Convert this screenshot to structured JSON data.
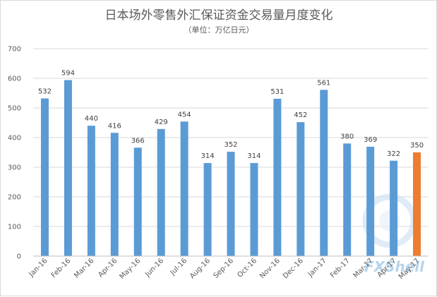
{
  "chart_data": {
    "type": "bar",
    "title": "日本场外零售外汇保证资金交易量月度变化",
    "subtitle": "（单位：万亿日元）",
    "categories": [
      "Jan-16",
      "Feb-16",
      "Mar-16",
      "Apr-16",
      "May-16",
      "Jun-16",
      "Jul-16",
      "Aug-16",
      "Sep-16",
      "Oct-16",
      "Nov-16",
      "Dec-16",
      "Jan-17",
      "Feb-17",
      "Mar-17",
      "Apr-17",
      "May-17"
    ],
    "values": [
      532,
      594,
      440,
      416,
      366,
      429,
      454,
      314,
      352,
      314,
      531,
      452,
      561,
      380,
      369,
      322,
      350
    ],
    "data_labels": [
      "532",
      "594",
      "440",
      "416",
      "366",
      "429",
      "454",
      "314",
      "352",
      "314",
      "531",
      "452",
      "561",
      "380",
      "369",
      "322",
      "350"
    ],
    "yticks": [
      "0",
      "100",
      "200",
      "300",
      "400",
      "500",
      "600",
      "700"
    ],
    "ylim": [
      0,
      700
    ],
    "grid": true,
    "legend": "none",
    "colors": {
      "bar": "#5b9bd5",
      "highlight": "#ed7d31"
    },
    "highlight_index": 16
  },
  "watermark": {
    "text": "FXShell"
  }
}
